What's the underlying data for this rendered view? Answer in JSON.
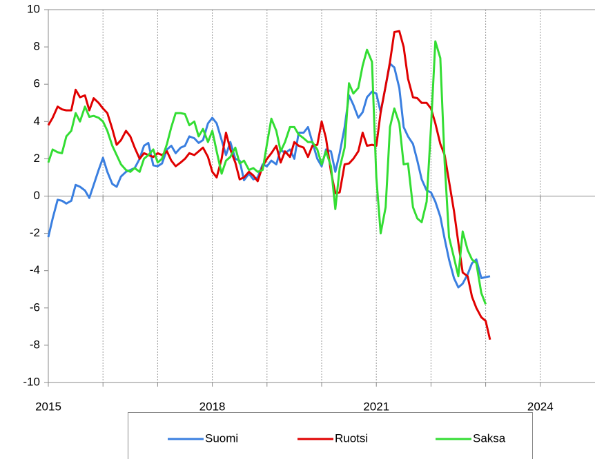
{
  "chart_data": {
    "type": "line",
    "x": [
      2015,
      2015.08,
      2015.17,
      2015.25,
      2015.33,
      2015.42,
      2015.5,
      2015.58,
      2015.67,
      2015.75,
      2015.83,
      2015.92,
      2016,
      2016.08,
      2016.17,
      2016.25,
      2016.33,
      2016.42,
      2016.5,
      2016.58,
      2016.67,
      2016.75,
      2016.83,
      2016.92,
      2017,
      2017.08,
      2017.17,
      2017.25,
      2017.33,
      2017.42,
      2017.5,
      2017.58,
      2017.67,
      2017.75,
      2017.83,
      2017.92,
      2018,
      2018.08,
      2018.17,
      2018.25,
      2018.33,
      2018.42,
      2018.5,
      2018.58,
      2018.67,
      2018.75,
      2018.83,
      2018.92,
      2019,
      2019.08,
      2019.17,
      2019.25,
      2019.33,
      2019.42,
      2019.5,
      2019.58,
      2019.67,
      2019.75,
      2019.83,
      2019.92,
      2020,
      2020.08,
      2020.17,
      2020.25,
      2020.33,
      2020.42,
      2020.5,
      2020.58,
      2020.67,
      2020.75,
      2020.83,
      2020.92,
      2021,
      2021.08,
      2021.17,
      2021.25,
      2021.33,
      2021.42,
      2021.5,
      2021.58,
      2021.67,
      2021.75,
      2021.83,
      2021.92,
      2022,
      2022.08,
      2022.17,
      2022.25,
      2022.33,
      2022.42,
      2022.5,
      2022.58,
      2022.67,
      2022.75,
      2022.83,
      2022.92,
      2023,
      2023.08
    ],
    "series": [
      {
        "name": "Suomi",
        "color": "#3a7fe0",
        "values": [
          -2.2,
          -1.2,
          -0.2,
          -0.25,
          -0.4,
          -0.25,
          0.6,
          0.5,
          0.3,
          -0.1,
          0.6,
          1.4,
          2.05,
          1.3,
          0.65,
          0.5,
          1.05,
          1.3,
          1.4,
          1.5,
          2.0,
          2.7,
          2.85,
          1.65,
          1.6,
          1.75,
          2.5,
          2.7,
          2.3,
          2.6,
          2.7,
          3.2,
          3.1,
          2.85,
          3.0,
          3.9,
          4.2,
          3.9,
          3.0,
          2.2,
          2.9,
          2.0,
          1.9,
          0.85,
          1.2,
          0.9,
          1.0,
          1.7,
          1.6,
          1.9,
          1.7,
          2.5,
          2.3,
          2.5,
          2.0,
          3.4,
          3.4,
          3.7,
          2.9,
          2.0,
          1.6,
          2.5,
          2.4,
          1.3,
          2.3,
          3.7,
          5.4,
          4.9,
          4.2,
          4.5,
          5.3,
          5.6,
          5.5,
          4.5,
          5.9,
          7.1,
          6.9,
          5.8,
          3.7,
          3.2,
          2.8,
          1.9,
          0.9,
          0.3,
          0.2,
          -0.3,
          -1.1,
          -2.3,
          -3.4,
          -4.4,
          -4.9,
          -4.7,
          -4.2,
          -3.6,
          -3.4,
          -4.4,
          -4.35,
          -4.3
        ]
      },
      {
        "name": "Ruotsi",
        "color": "#e00000",
        "values": [
          3.8,
          4.2,
          4.8,
          4.65,
          4.6,
          4.6,
          5.7,
          5.3,
          5.4,
          4.6,
          5.25,
          5.0,
          4.7,
          4.45,
          3.6,
          2.75,
          3.0,
          3.5,
          3.2,
          2.6,
          2.0,
          2.3,
          2.2,
          2.1,
          2.3,
          2.2,
          2.4,
          1.9,
          1.6,
          1.8,
          2.0,
          2.3,
          2.2,
          2.4,
          2.6,
          2.1,
          1.3,
          1.0,
          2.0,
          3.4,
          2.5,
          1.8,
          0.9,
          1.0,
          1.3,
          1.1,
          0.8,
          1.6,
          2.0,
          2.3,
          2.7,
          1.8,
          2.4,
          2.1,
          2.9,
          2.7,
          2.6,
          2.1,
          2.7,
          2.75,
          4.0,
          3.1,
          1.3,
          0.15,
          0.2,
          1.7,
          1.75,
          2.0,
          2.4,
          3.4,
          2.7,
          2.75,
          2.7,
          4.5,
          5.9,
          7.2,
          8.8,
          8.85,
          8.0,
          6.3,
          5.3,
          5.25,
          5.0,
          5.0,
          4.7,
          3.9,
          2.8,
          2.2,
          0.8,
          -0.8,
          -2.5,
          -4.1,
          -4.3,
          -5.4,
          -6.0,
          -6.5,
          -6.7,
          -7.7
        ]
      },
      {
        "name": "Saksa",
        "color": "#33dd33",
        "values": [
          1.8,
          2.5,
          2.35,
          2.3,
          3.2,
          3.5,
          4.45,
          4.0,
          4.8,
          4.25,
          4.3,
          4.2,
          4.0,
          3.5,
          2.7,
          2.2,
          1.7,
          1.4,
          1.3,
          1.5,
          1.3,
          2.0,
          2.2,
          2.5,
          1.8,
          2.0,
          2.8,
          3.7,
          4.45,
          4.45,
          4.4,
          3.8,
          4.0,
          3.2,
          3.6,
          2.9,
          3.5,
          2.4,
          1.2,
          1.9,
          2.1,
          2.6,
          1.75,
          1.9,
          1.4,
          1.5,
          1.3,
          1.4,
          2.8,
          4.15,
          3.5,
          2.4,
          2.9,
          3.7,
          3.7,
          3.3,
          3.1,
          2.9,
          2.9,
          2.5,
          1.7,
          2.4,
          1.6,
          -0.7,
          1.5,
          2.6,
          6.05,
          5.5,
          5.8,
          7.0,
          7.85,
          7.2,
          1.0,
          -2.0,
          -0.6,
          3.7,
          4.7,
          3.9,
          1.7,
          1.75,
          -0.6,
          -1.2,
          -1.4,
          -0.3,
          3.7,
          8.3,
          7.4,
          1.8,
          -2.2,
          -3.3,
          -4.3,
          -1.9,
          -2.9,
          -3.4,
          -3.6,
          -5.2,
          -5.8,
          null
        ]
      }
    ],
    "xlim": [
      2015,
      2025
    ],
    "xticks": [
      2015,
      2018,
      2021,
      2024
    ],
    "xminorticks": [
      2016,
      2017,
      2019,
      2020,
      2022,
      2023
    ],
    "ylim": [
      -10,
      10
    ],
    "yticks": [
      -10,
      -8,
      -6,
      -4,
      -2,
      0,
      2,
      4,
      6,
      8,
      10
    ],
    "xgrid": true,
    "legend": "bottom"
  }
}
